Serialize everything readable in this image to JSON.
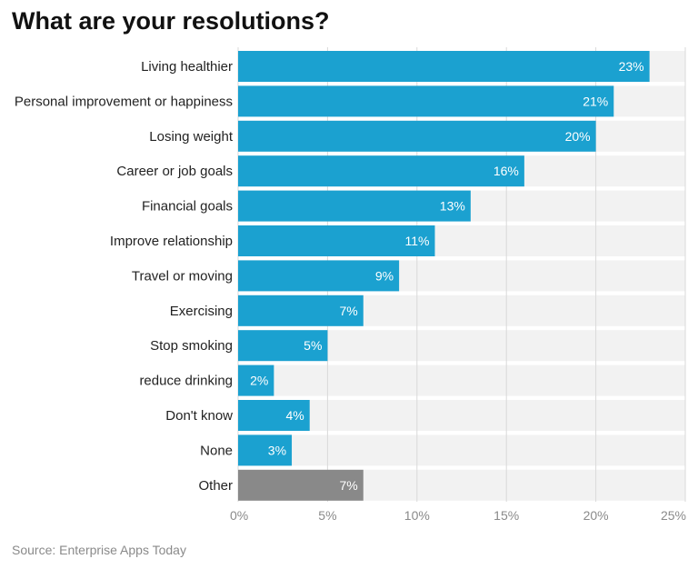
{
  "chart_data": {
    "type": "bar",
    "orientation": "horizontal",
    "title": "What are your resolutions?",
    "source": "Source: Enterprise Apps Today",
    "categories": [
      "Living healthier",
      "Personal improvement or happiness",
      "Losing weight",
      "Career or job goals",
      "Financial goals",
      "Improve relationship",
      "Travel or moving",
      "Exercising",
      "Stop smoking",
      "reduce drinking",
      "Don't know",
      "None",
      "Other"
    ],
    "values": [
      23,
      21,
      20,
      16,
      13,
      11,
      9,
      7,
      5,
      2,
      4,
      3,
      7
    ],
    "value_labels": [
      "23%",
      "21%",
      "20%",
      "16%",
      "13%",
      "11%",
      "9%",
      "7%",
      "5%",
      "2%",
      "4%",
      "3%",
      "7%"
    ],
    "x_ticks": [
      0,
      5,
      10,
      15,
      20,
      25
    ],
    "x_tick_labels": [
      "0%",
      "5%",
      "10%",
      "15%",
      "20%",
      "25%"
    ],
    "xlim": [
      0,
      25
    ],
    "xlabel": "",
    "ylabel": "",
    "grid": true,
    "colors": {
      "bar": "#1ba1d0",
      "highlight_bar": "#898989",
      "background_band": "#f2f2f2",
      "grid": "#d9d9d9"
    },
    "highlight_category": "Other"
  }
}
